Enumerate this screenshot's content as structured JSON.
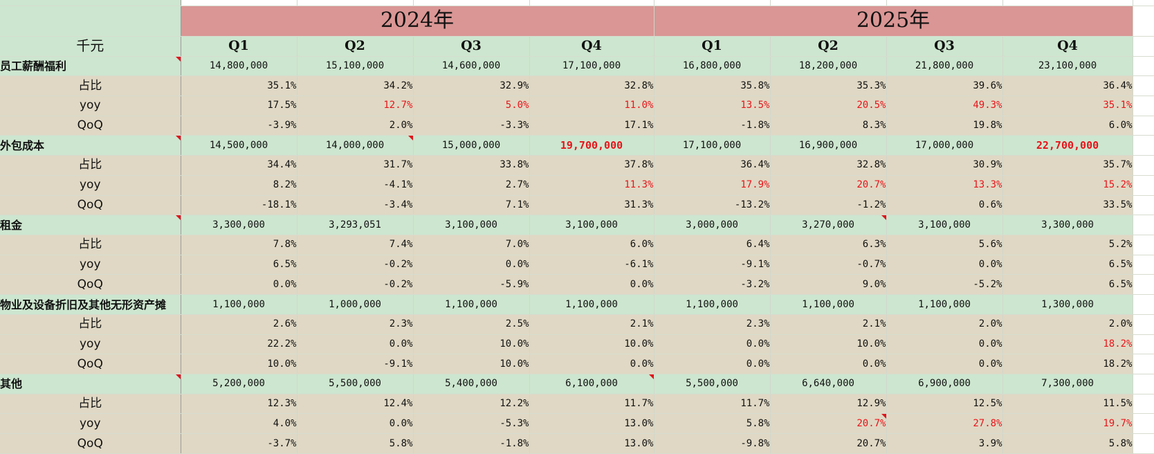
{
  "header": {
    "unit_label": "千元",
    "years": [
      "2024年",
      "2025年"
    ],
    "quarters": [
      "Q1",
      "Q2",
      "Q3",
      "Q4",
      "Q1",
      "Q2",
      "Q3",
      "Q4"
    ]
  },
  "categories": [
    {
      "label": "员工薪酬福利",
      "comment_marker": true,
      "values": [
        "14,800,000",
        "15,100,000",
        "14,600,000",
        "17,100,000",
        "16,800,000",
        "18,200,000",
        "21,800,000",
        "23,100,000"
      ],
      "emphasis": [
        false,
        false,
        false,
        false,
        false,
        false,
        false,
        false
      ],
      "value_comment_markers": [
        false,
        false,
        false,
        false,
        false,
        false,
        false,
        false
      ],
      "metrics": [
        {
          "label": "占比",
          "values": [
            "35.1%",
            "34.2%",
            "32.9%",
            "32.8%",
            "35.8%",
            "35.3%",
            "39.6%",
            "36.4%"
          ],
          "red": [
            false,
            false,
            false,
            false,
            false,
            false,
            false,
            false
          ],
          "markers": [
            false,
            false,
            false,
            false,
            false,
            false,
            false,
            false
          ]
        },
        {
          "label": "yoy",
          "values": [
            "17.5%",
            "12.7%",
            "5.0%",
            "11.0%",
            "13.5%",
            "20.5%",
            "49.3%",
            "35.1%"
          ],
          "red": [
            false,
            true,
            true,
            true,
            true,
            true,
            true,
            true
          ],
          "markers": [
            false,
            false,
            false,
            false,
            false,
            false,
            false,
            false
          ]
        },
        {
          "label": "QoQ",
          "values": [
            "-3.9%",
            "2.0%",
            "-3.3%",
            "17.1%",
            "-1.8%",
            "8.3%",
            "19.8%",
            "6.0%"
          ],
          "red": [
            false,
            false,
            false,
            false,
            false,
            false,
            false,
            false
          ],
          "markers": [
            false,
            false,
            false,
            false,
            false,
            false,
            false,
            false
          ]
        }
      ]
    },
    {
      "label": "外包成本",
      "comment_marker": true,
      "values": [
        "14,500,000",
        "14,000,000",
        "15,000,000",
        "19,700,000",
        "17,100,000",
        "16,900,000",
        "17,000,000",
        "22,700,000"
      ],
      "emphasis": [
        false,
        false,
        false,
        true,
        false,
        false,
        false,
        true
      ],
      "value_comment_markers": [
        false,
        true,
        false,
        false,
        false,
        false,
        false,
        false
      ],
      "metrics": [
        {
          "label": "占比",
          "values": [
            "34.4%",
            "31.7%",
            "33.8%",
            "37.8%",
            "36.4%",
            "32.8%",
            "30.9%",
            "35.7%"
          ],
          "red": [
            false,
            false,
            false,
            false,
            false,
            false,
            false,
            false
          ],
          "markers": [
            false,
            false,
            false,
            false,
            false,
            false,
            false,
            false
          ]
        },
        {
          "label": "yoy",
          "values": [
            "8.2%",
            "-4.1%",
            "2.7%",
            "11.3%",
            "17.9%",
            "20.7%",
            "13.3%",
            "15.2%"
          ],
          "red": [
            false,
            false,
            false,
            true,
            true,
            true,
            true,
            true
          ],
          "markers": [
            false,
            false,
            false,
            false,
            false,
            false,
            false,
            false
          ]
        },
        {
          "label": "QoQ",
          "values": [
            "-18.1%",
            "-3.4%",
            "7.1%",
            "31.3%",
            "-13.2%",
            "-1.2%",
            "0.6%",
            "33.5%"
          ],
          "red": [
            false,
            false,
            false,
            false,
            false,
            false,
            false,
            false
          ],
          "markers": [
            false,
            false,
            false,
            false,
            false,
            false,
            false,
            false
          ]
        }
      ]
    },
    {
      "label": "租金",
      "comment_marker": true,
      "values": [
        "3,300,000",
        "3,293,051",
        "3,100,000",
        "3,100,000",
        "3,000,000",
        "3,270,000",
        "3,100,000",
        "3,300,000"
      ],
      "emphasis": [
        false,
        false,
        false,
        false,
        false,
        false,
        false,
        false
      ],
      "value_comment_markers": [
        false,
        false,
        false,
        false,
        false,
        true,
        false,
        false
      ],
      "metrics": [
        {
          "label": "占比",
          "values": [
            "7.8%",
            "7.4%",
            "7.0%",
            "6.0%",
            "6.4%",
            "6.3%",
            "5.6%",
            "5.2%"
          ],
          "red": [
            false,
            false,
            false,
            false,
            false,
            false,
            false,
            false
          ],
          "markers": [
            false,
            false,
            false,
            false,
            false,
            false,
            false,
            false
          ]
        },
        {
          "label": "yoy",
          "values": [
            "6.5%",
            "-0.2%",
            "0.0%",
            "-6.1%",
            "-9.1%",
            "-0.7%",
            "0.0%",
            "6.5%"
          ],
          "red": [
            false,
            false,
            false,
            false,
            false,
            false,
            false,
            false
          ],
          "markers": [
            false,
            false,
            false,
            false,
            false,
            false,
            false,
            false
          ]
        },
        {
          "label": "QoQ",
          "values": [
            "0.0%",
            "-0.2%",
            "-5.9%",
            "0.0%",
            "-3.2%",
            "9.0%",
            "-5.2%",
            "6.5%"
          ],
          "red": [
            false,
            false,
            false,
            false,
            false,
            false,
            false,
            false
          ],
          "markers": [
            false,
            false,
            false,
            false,
            false,
            false,
            false,
            false
          ]
        }
      ]
    },
    {
      "label": "物业及设备折旧及其他无形资产摊",
      "comment_marker": false,
      "values": [
        "1,100,000",
        "1,000,000",
        "1,100,000",
        "1,100,000",
        "1,100,000",
        "1,100,000",
        "1,100,000",
        "1,300,000"
      ],
      "emphasis": [
        false,
        false,
        false,
        false,
        false,
        false,
        false,
        false
      ],
      "value_comment_markers": [
        false,
        false,
        false,
        false,
        false,
        false,
        false,
        false
      ],
      "metrics": [
        {
          "label": "占比",
          "values": [
            "2.6%",
            "2.3%",
            "2.5%",
            "2.1%",
            "2.3%",
            "2.1%",
            "2.0%",
            "2.0%"
          ],
          "red": [
            false,
            false,
            false,
            false,
            false,
            false,
            false,
            false
          ],
          "markers": [
            false,
            false,
            false,
            false,
            false,
            false,
            false,
            false
          ]
        },
        {
          "label": "yoy",
          "values": [
            "22.2%",
            "0.0%",
            "10.0%",
            "10.0%",
            "0.0%",
            "10.0%",
            "0.0%",
            "18.2%"
          ],
          "red": [
            false,
            false,
            false,
            false,
            false,
            false,
            false,
            true
          ],
          "markers": [
            false,
            false,
            false,
            false,
            false,
            false,
            false,
            false
          ]
        },
        {
          "label": "QoQ",
          "values": [
            "10.0%",
            "-9.1%",
            "10.0%",
            "0.0%",
            "0.0%",
            "0.0%",
            "0.0%",
            "18.2%"
          ],
          "red": [
            false,
            false,
            false,
            false,
            false,
            false,
            false,
            false
          ],
          "markers": [
            false,
            false,
            false,
            false,
            false,
            false,
            false,
            false
          ]
        }
      ]
    },
    {
      "label": "其他",
      "comment_marker": true,
      "values": [
        "5,200,000",
        "5,500,000",
        "5,400,000",
        "6,100,000",
        "5,500,000",
        "6,640,000",
        "6,900,000",
        "7,300,000"
      ],
      "emphasis": [
        false,
        false,
        false,
        false,
        false,
        false,
        false,
        false
      ],
      "value_comment_markers": [
        false,
        false,
        false,
        true,
        false,
        false,
        false,
        false
      ],
      "metrics": [
        {
          "label": "占比",
          "values": [
            "12.3%",
            "12.4%",
            "12.2%",
            "11.7%",
            "11.7%",
            "12.9%",
            "12.5%",
            "11.5%"
          ],
          "red": [
            false,
            false,
            false,
            false,
            false,
            false,
            false,
            false
          ],
          "markers": [
            false,
            false,
            false,
            false,
            false,
            false,
            false,
            false
          ]
        },
        {
          "label": "yoy",
          "values": [
            "4.0%",
            "0.0%",
            "-5.3%",
            "13.0%",
            "5.8%",
            "20.7%",
            "27.8%",
            "19.7%"
          ],
          "red": [
            false,
            false,
            false,
            false,
            false,
            true,
            true,
            true
          ],
          "markers": [
            false,
            false,
            false,
            false,
            false,
            true,
            false,
            false
          ]
        },
        {
          "label": "QoQ",
          "values": [
            "-3.7%",
            "5.8%",
            "-1.8%",
            "13.0%",
            "-9.8%",
            "20.7%",
            "3.9%",
            "5.8%"
          ],
          "red": [
            false,
            false,
            false,
            false,
            false,
            false,
            false,
            false
          ],
          "markers": [
            false,
            false,
            false,
            false,
            false,
            false,
            false,
            false
          ]
        }
      ]
    }
  ],
  "colors": {
    "header_red": "#d99694",
    "main_row_green": "#cde6cf",
    "sub_row_tan": "#e0d8c4",
    "emphasis_red": "#e8141b"
  }
}
